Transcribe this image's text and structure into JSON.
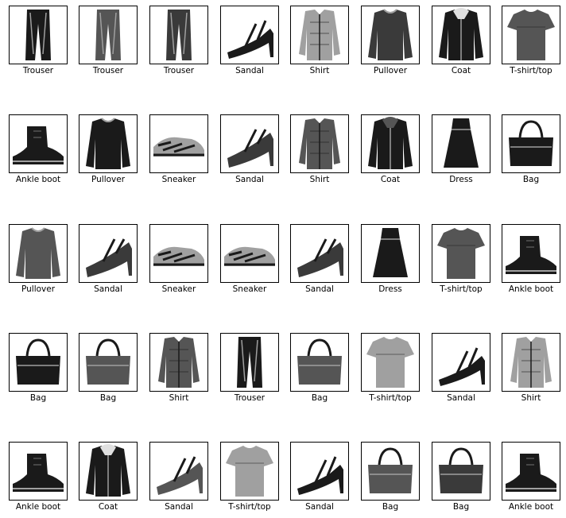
{
  "columns": 8,
  "colors": {
    "background": "#ffffff",
    "border": "#000000",
    "ink_dark": "#1a1a1a",
    "ink_mid": "#555555",
    "ink_light": "#a0a0a0"
  },
  "items": [
    {
      "label": "Trouser",
      "icon": "trouser-icon"
    },
    {
      "label": "Trouser",
      "icon": "trouser-icon"
    },
    {
      "label": "Trouser",
      "icon": "trouser-icon"
    },
    {
      "label": "Sandal",
      "icon": "sandal-icon"
    },
    {
      "label": "Shirt",
      "icon": "shirt-icon"
    },
    {
      "label": "Pullover",
      "icon": "pullover-icon"
    },
    {
      "label": "Coat",
      "icon": "coat-icon"
    },
    {
      "label": "T-shirt/top",
      "icon": "tshirt-icon"
    },
    {
      "label": "Ankle boot",
      "icon": "ankle-boot-icon"
    },
    {
      "label": "Pullover",
      "icon": "pullover-icon"
    },
    {
      "label": "Sneaker",
      "icon": "sneaker-icon"
    },
    {
      "label": "Sandal",
      "icon": "sandal-icon"
    },
    {
      "label": "Shirt",
      "icon": "shirt-icon"
    },
    {
      "label": "Coat",
      "icon": "coat-icon"
    },
    {
      "label": "Dress",
      "icon": "dress-icon"
    },
    {
      "label": "Bag",
      "icon": "bag-icon"
    },
    {
      "label": "Pullover",
      "icon": "pullover-icon"
    },
    {
      "label": "Sandal",
      "icon": "sandal-icon"
    },
    {
      "label": "Sneaker",
      "icon": "sneaker-icon"
    },
    {
      "label": "Sneaker",
      "icon": "sneaker-icon"
    },
    {
      "label": "Sandal",
      "icon": "sandal-icon"
    },
    {
      "label": "Dress",
      "icon": "dress-icon"
    },
    {
      "label": "T-shirt/top",
      "icon": "tshirt-icon"
    },
    {
      "label": "Ankle boot",
      "icon": "ankle-boot-icon"
    },
    {
      "label": "Bag",
      "icon": "bag-icon"
    },
    {
      "label": "Bag",
      "icon": "bag-icon"
    },
    {
      "label": "Shirt",
      "icon": "shirt-icon"
    },
    {
      "label": "Trouser",
      "icon": "trouser-icon"
    },
    {
      "label": "Bag",
      "icon": "bag-icon"
    },
    {
      "label": "T-shirt/top",
      "icon": "tshirt-icon"
    },
    {
      "label": "Sandal",
      "icon": "sandal-icon"
    },
    {
      "label": "Shirt",
      "icon": "shirt-icon"
    },
    {
      "label": "Ankle boot",
      "icon": "ankle-boot-icon"
    },
    {
      "label": "Coat",
      "icon": "coat-icon"
    },
    {
      "label": "Sandal",
      "icon": "sandal-icon"
    },
    {
      "label": "T-shirt/top",
      "icon": "tshirt-icon"
    },
    {
      "label": "Sandal",
      "icon": "sandal-icon"
    },
    {
      "label": "Bag",
      "icon": "bag-icon"
    },
    {
      "label": "Bag",
      "icon": "bag-icon"
    },
    {
      "label": "Ankle boot",
      "icon": "ankle-boot-icon"
    }
  ]
}
